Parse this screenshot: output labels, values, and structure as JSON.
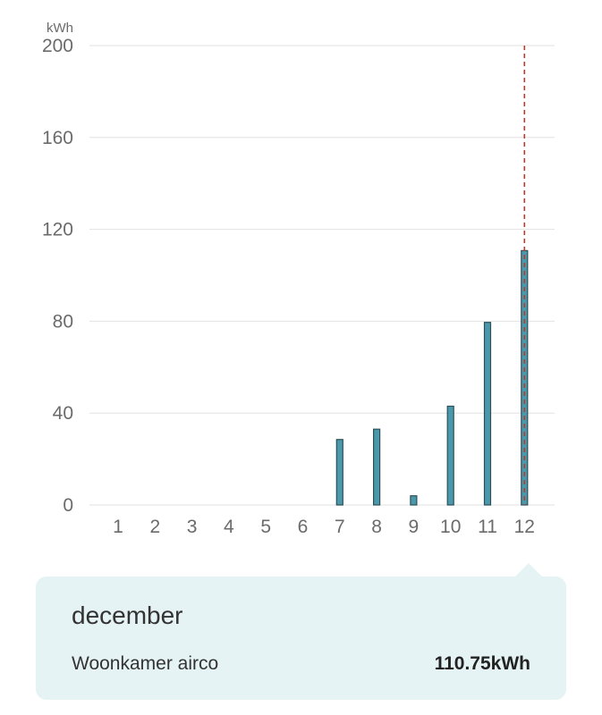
{
  "chart_data": {
    "type": "bar",
    "unit_label": "kWh",
    "categories": [
      "1",
      "2",
      "3",
      "4",
      "5",
      "6",
      "7",
      "8",
      "9",
      "10",
      "11",
      "12"
    ],
    "series": [
      {
        "name": "Woonkamer airco",
        "values": [
          0,
          0,
          0,
          0,
          0,
          0,
          28.5,
          33,
          4,
          43,
          79.5,
          110.75
        ]
      }
    ],
    "ylim": [
      0,
      200
    ],
    "yticks": [
      0,
      40,
      80,
      120,
      160,
      200
    ],
    "grid": true,
    "highlight_index": 11,
    "colors": {
      "bar": "#4a98ab",
      "bar_edge": "#2f4f57",
      "marker": "#c0392b",
      "grid": "#e2e2e2"
    }
  },
  "tooltip": {
    "title": "december",
    "series_label": "Woonkamer airco",
    "value_text": "110.75kWh",
    "background": "#e6f3f4"
  }
}
